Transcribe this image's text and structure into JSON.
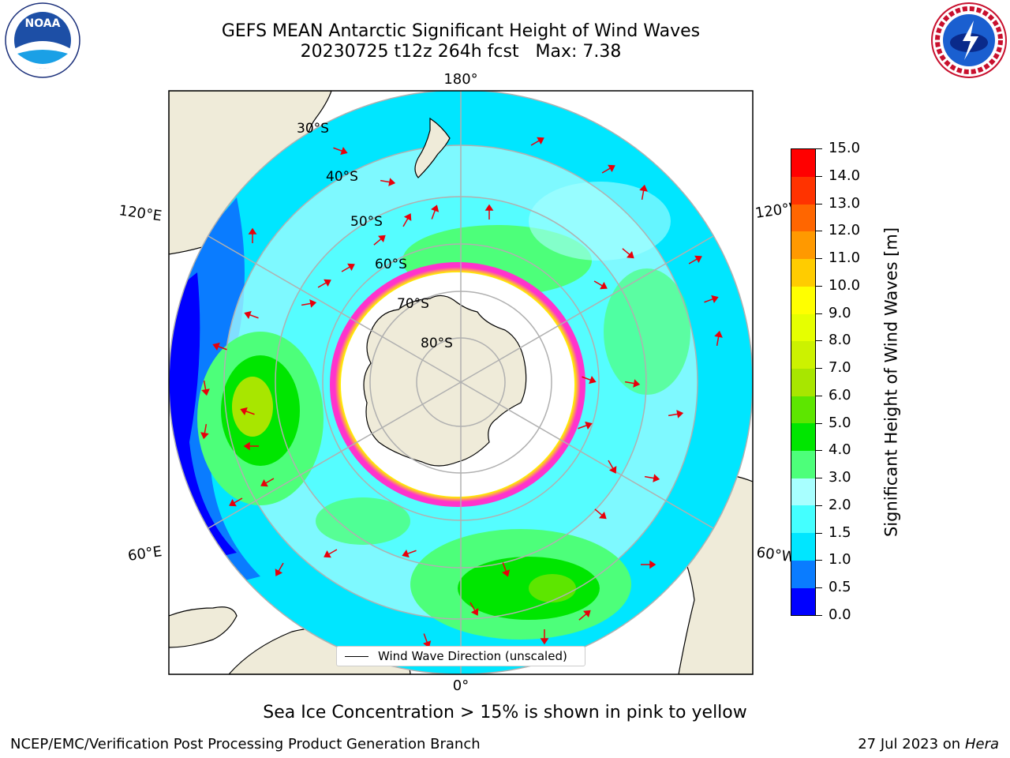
{
  "title": {
    "line1": "GEFS MEAN Antarctic Significant Height of Wind Waves",
    "line2": "20230725 t12z 264h fcst   Max: 7.38"
  },
  "logos": {
    "noaa": {
      "name": "NOAA",
      "ring_text": "NATIONAL OCEANIC AND ATMOSPHERIC ADMINISTRATION"
    },
    "nws": {
      "ring_text": "NATIONAL WEATHER SERVICE"
    }
  },
  "map": {
    "projection": "south polar stereographic",
    "longitude_labels": {
      "top": "180°",
      "bottom": "0°",
      "upper_left": "120°E",
      "upper_right": "120°W",
      "lower_left": "60°E",
      "lower_right": "60°W"
    },
    "latitude_labels": [
      "30°S",
      "40°S",
      "50°S",
      "60°S",
      "70°S",
      "80°S"
    ],
    "colors": {
      "land": "#efebd9",
      "ice_pink": "#ff33cc",
      "ice_yellow": "#ffeb00",
      "grid": "#b0b0b0",
      "arrow": "#e8000b"
    },
    "legend": {
      "label": "Wind Wave Direction (unscaled)"
    }
  },
  "colorbar": {
    "title": "Significant Height of Wind Waves [m]",
    "ticks": [
      "0.0",
      "0.5",
      "1.0",
      "1.5",
      "2.0",
      "3.0",
      "4.0",
      "5.0",
      "6.0",
      "7.0",
      "8.0",
      "9.0",
      "10.0",
      "11.0",
      "12.0",
      "13.0",
      "14.0",
      "15.0"
    ],
    "colors": [
      "#0000ff",
      "#0a7cff",
      "#00e6ff",
      "#44ffff",
      "#a8ffff",
      "#4dff7a",
      "#00e600",
      "#5de600",
      "#a8e600",
      "#ccf200",
      "#e6ff00",
      "#ffff00",
      "#ffcc00",
      "#ff9900",
      "#ff6600",
      "#ff3300",
      "#ff0000"
    ]
  },
  "caption": "Sea Ice Concentration > 15% is shown in pink to yellow",
  "footer": {
    "left": "NCEP/EMC/Verification Post Processing Product Generation Branch",
    "date": "27 Jul 2023 on ",
    "host": "Hera"
  }
}
